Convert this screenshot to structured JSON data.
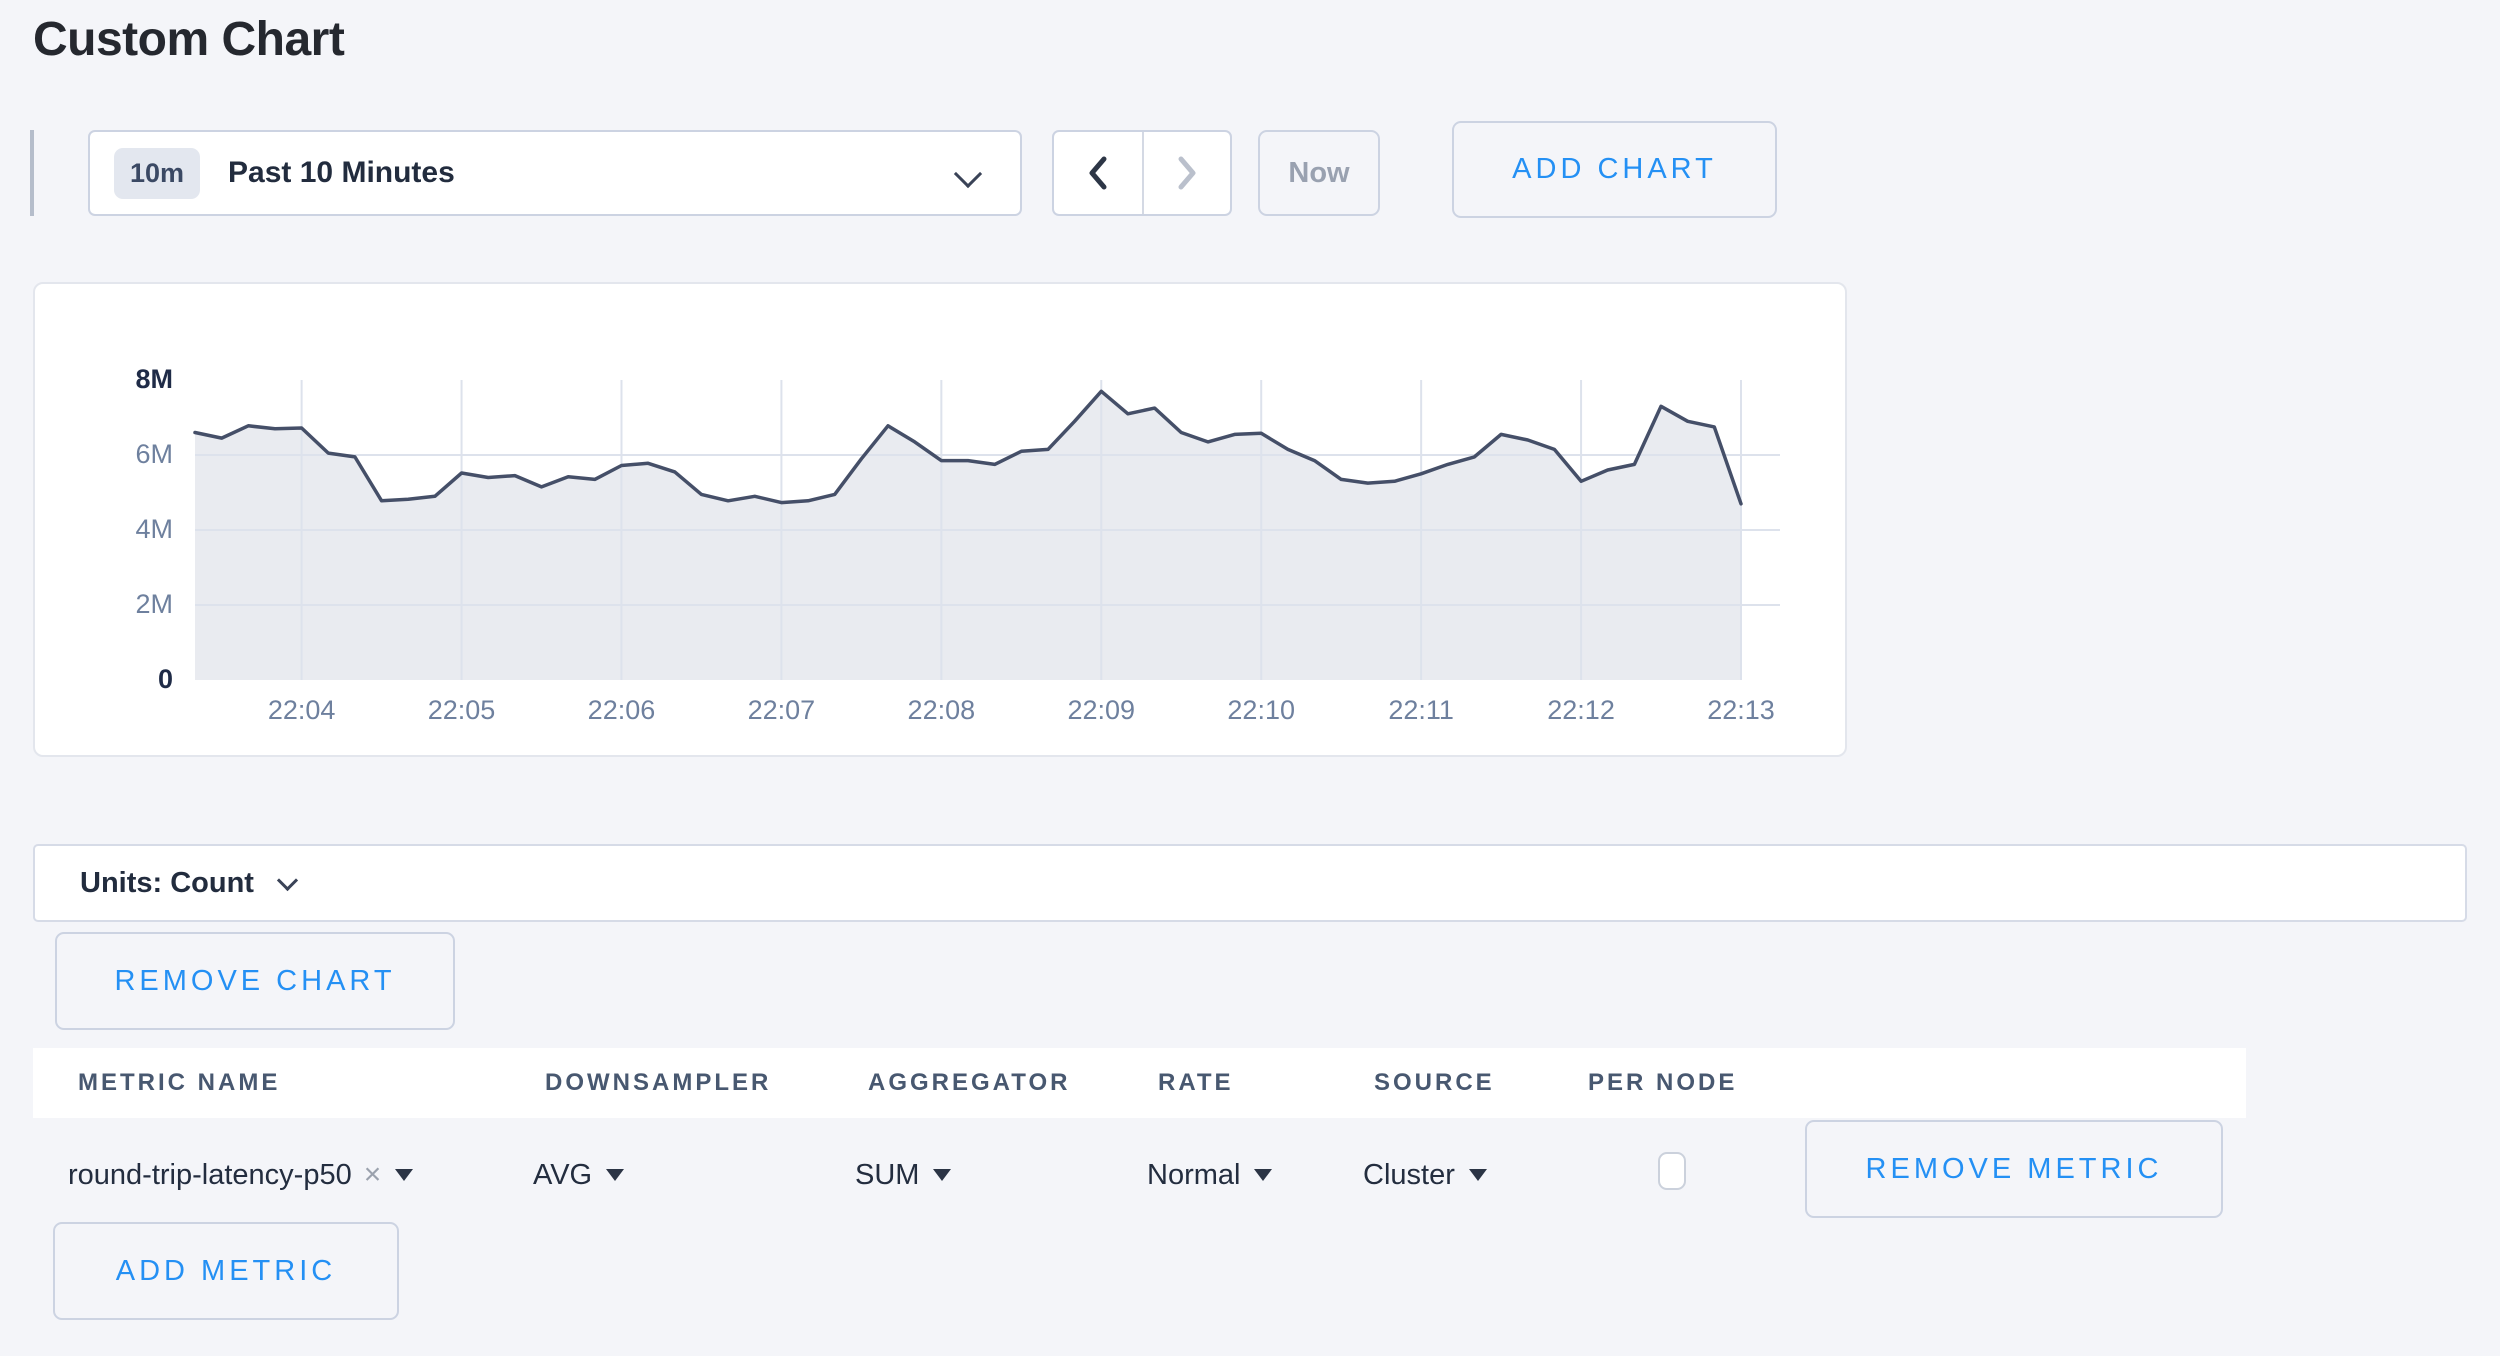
{
  "page": {
    "title": "Custom Chart"
  },
  "toolbar": {
    "time_badge": "10m",
    "time_label": "Past 10 Minutes",
    "prev_icon": "chevron-left",
    "next_icon": "chevron-right",
    "now_label": "Now",
    "add_chart_label": "ADD CHART"
  },
  "chart_data": {
    "type": "area",
    "title": "",
    "xlabel": "",
    "ylabel": "",
    "unit": "count",
    "ylim": [
      0,
      8000000
    ],
    "grid": true,
    "legend": "none",
    "x_start": "22:03:20",
    "x_interval_seconds": 10,
    "x_tick_labels": [
      "22:04",
      "22:05",
      "22:06",
      "22:07",
      "22:08",
      "22:09",
      "22:10",
      "22:11",
      "22:12",
      "22:13"
    ],
    "y_ticks": [
      {
        "label": "0",
        "value_millions": 0,
        "strong": true
      },
      {
        "label": "2M",
        "value_millions": 2,
        "strong": false
      },
      {
        "label": "4M",
        "value_millions": 4,
        "strong": false
      },
      {
        "label": "6M",
        "value_millions": 6,
        "strong": false
      },
      {
        "label": "8M",
        "value_millions": 8,
        "strong": true
      }
    ],
    "series": [
      {
        "name": "round-trip-latency-p50",
        "values_millions": [
          6.6,
          6.45,
          6.78,
          6.7,
          6.72,
          6.05,
          5.95,
          4.78,
          4.82,
          4.9,
          5.52,
          5.4,
          5.45,
          5.15,
          5.42,
          5.35,
          5.72,
          5.78,
          5.55,
          4.95,
          4.78,
          4.9,
          4.73,
          4.78,
          4.95,
          5.9,
          6.78,
          6.35,
          5.85,
          5.85,
          5.75,
          6.1,
          6.15,
          6.9,
          7.7,
          7.1,
          7.25,
          6.6,
          6.35,
          6.55,
          6.58,
          6.15,
          5.85,
          5.35,
          5.25,
          5.3,
          5.5,
          5.75,
          5.95,
          6.55,
          6.4,
          6.15,
          5.3,
          5.6,
          5.75,
          7.3,
          6.9,
          6.75,
          4.7
        ]
      }
    ],
    "style": {
      "line_color": "#454f68",
      "fill_color": "#e9ebf0",
      "gridline_color": "#dde2ec"
    }
  },
  "units_bar": {
    "label": "Units: Count"
  },
  "chart_actions": {
    "remove_chart_label": "REMOVE CHART"
  },
  "metrics_table": {
    "headers": [
      "METRIC NAME",
      "DOWNSAMPLER",
      "AGGREGATOR",
      "RATE",
      "SOURCE",
      "PER NODE"
    ],
    "rows": [
      {
        "metric_name": "round-trip-latency-p50",
        "remove_value_icon": "x",
        "downsampler": "AVG",
        "aggregator": "SUM",
        "rate": "Normal",
        "source": "Cluster",
        "per_node_checked": false,
        "remove_label": "REMOVE METRIC"
      }
    ],
    "add_metric_label": "ADD METRIC"
  },
  "colors": {
    "page_bg": "#f4f5f9",
    "accent_blue": "#2490f4",
    "header_text": "#485870",
    "dark_text": "#222c3e",
    "muted_text": "#6e809e",
    "disabled_text": "#99a1b0",
    "border": "#ccd3e2"
  }
}
